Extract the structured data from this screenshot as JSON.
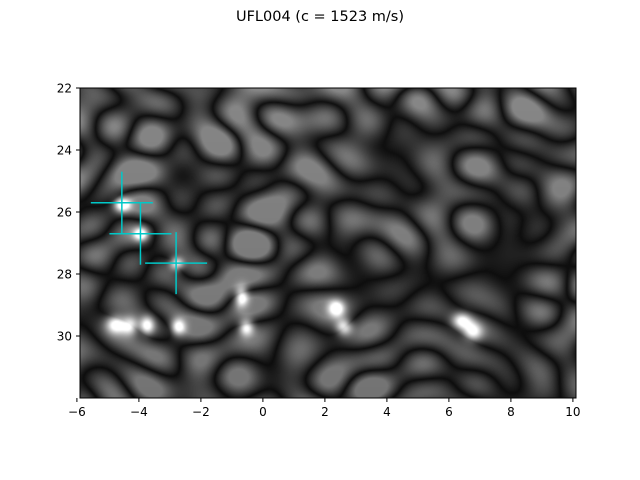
{
  "chart_data": {
    "type": "heatmap",
    "title": "UFL004 (c = 1523 m/s)",
    "xlabel": "",
    "ylabel": "",
    "xlim": [
      -6,
      10
    ],
    "ylim": [
      32,
      22
    ],
    "y_inverted": true,
    "x_ticks": [
      -6,
      -4,
      -2,
      0,
      2,
      4,
      6,
      8,
      10
    ],
    "x_tick_labels": [
      "−6",
      "−4",
      "−2",
      "0",
      "2",
      "4",
      "6",
      "8",
      "10"
    ],
    "y_ticks": [
      22,
      24,
      26,
      28,
      30
    ],
    "y_tick_labels": [
      "22",
      "24",
      "26",
      "28",
      "30"
    ],
    "image_extent": {
      "x": [
        -5.9,
        10.1
      ],
      "y": [
        22,
        32
      ]
    },
    "colormap": "gray",
    "grid": false,
    "markers": {
      "color": "#00c8c8",
      "style": "cross",
      "points": [
        {
          "x": -4.55,
          "y": 25.7
        },
        {
          "x": -3.95,
          "y": 26.7
        },
        {
          "x": -2.8,
          "y": 27.65
        }
      ]
    },
    "bright_scatterers": [
      {
        "x": -4.55,
        "y": 25.75,
        "intensity": 0.95,
        "sx": 0.25,
        "sy": 0.22
      },
      {
        "x": -3.95,
        "y": 26.7,
        "intensity": 0.9,
        "sx": 0.22,
        "sy": 0.2
      },
      {
        "x": -2.8,
        "y": 27.65,
        "intensity": 0.85,
        "sx": 0.22,
        "sy": 0.2
      },
      {
        "x": -4.75,
        "y": 29.6,
        "intensity": 0.9,
        "sx": 0.3,
        "sy": 0.28
      },
      {
        "x": -4.3,
        "y": 29.65,
        "intensity": 0.85,
        "sx": 0.25,
        "sy": 0.28
      },
      {
        "x": -3.75,
        "y": 29.65,
        "intensity": 0.85,
        "sx": 0.22,
        "sy": 0.28
      },
      {
        "x": -2.75,
        "y": 29.7,
        "intensity": 0.8,
        "sx": 0.22,
        "sy": 0.25
      },
      {
        "x": -0.7,
        "y": 28.7,
        "intensity": 0.85,
        "sx": 0.2,
        "sy": 0.3
      },
      {
        "x": -0.55,
        "y": 29.7,
        "intensity": 0.85,
        "sx": 0.22,
        "sy": 0.25
      },
      {
        "x": 2.35,
        "y": 29.1,
        "intensity": 0.85,
        "sx": 0.25,
        "sy": 0.25
      },
      {
        "x": 2.6,
        "y": 29.7,
        "intensity": 0.85,
        "sx": 0.25,
        "sy": 0.25
      },
      {
        "x": 6.4,
        "y": 29.5,
        "intensity": 0.85,
        "sx": 0.3,
        "sy": 0.25
      },
      {
        "x": 6.75,
        "y": 29.85,
        "intensity": 0.8,
        "sx": 0.3,
        "sy": 0.3
      }
    ]
  }
}
